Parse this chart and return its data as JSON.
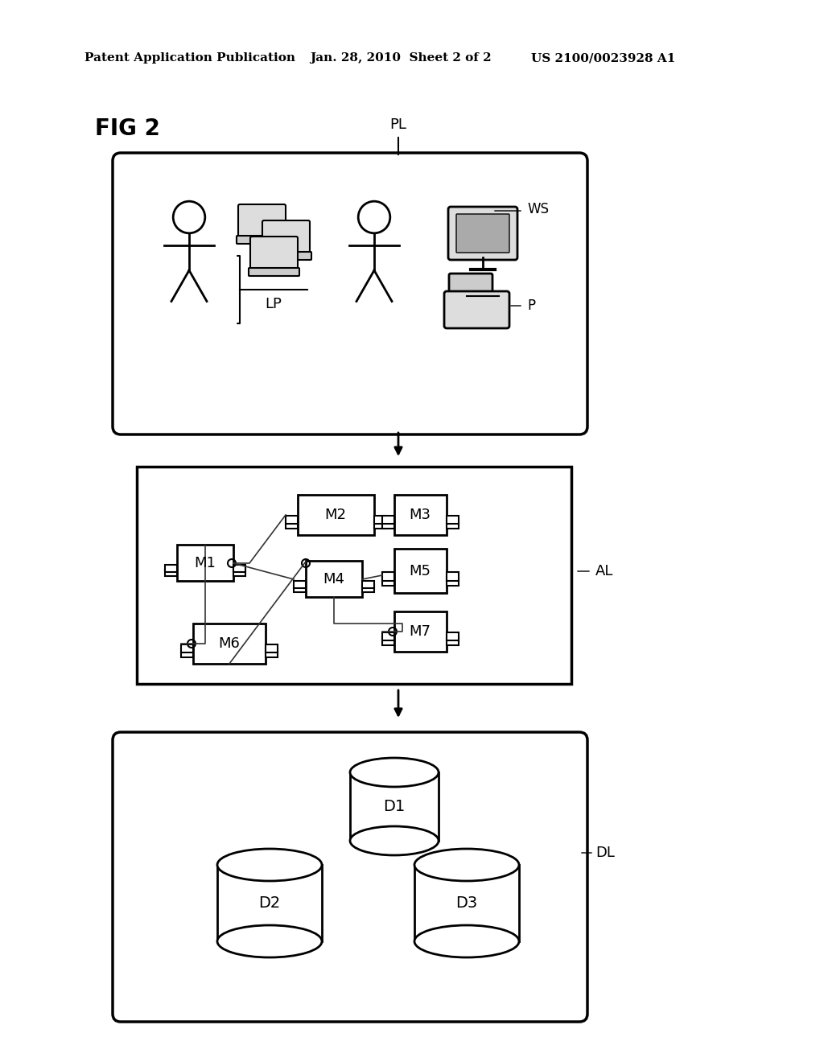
{
  "bg_color": "#ffffff",
  "header_text": "Patent Application Publication",
  "header_date": "Jan. 28, 2010  Sheet 2 of 2",
  "header_patent": "US 2100/0023928 A1",
  "fig_label": "FIG 2",
  "pl_label": "PL",
  "al_label": "AL",
  "dl_label": "DL",
  "ws_label": "WS",
  "lp_label": "LP",
  "p_label": "P",
  "module_labels": [
    "M1",
    "M2",
    "M3",
    "M4",
    "M5",
    "M6",
    "M7"
  ],
  "db_labels": [
    "D1",
    "D2",
    "D3"
  ]
}
